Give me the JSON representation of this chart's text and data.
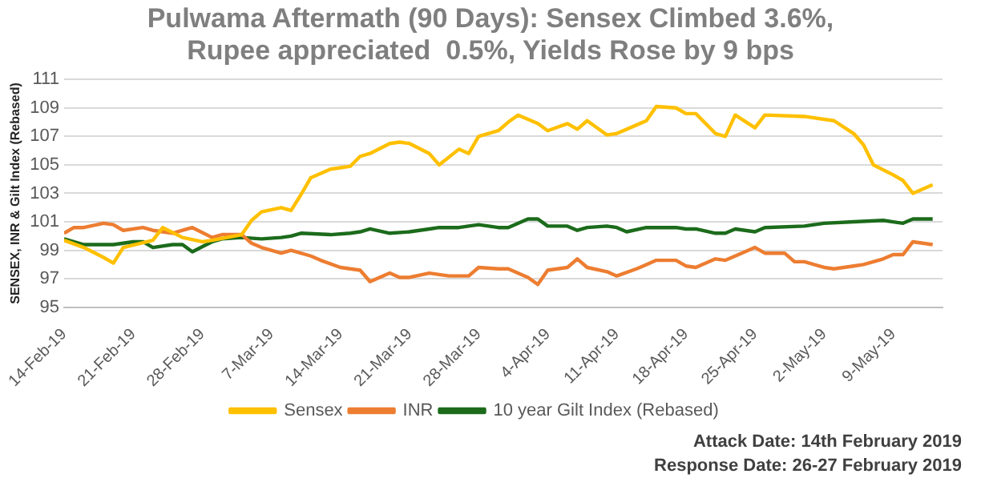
{
  "chart_data": {
    "type": "line",
    "title": "Pulwama Aftermath (90 Days): Sensex Climbed 3.6%, Rupee appreciated  0.5%, Yields Rose by 9 bps",
    "ylabel": "SENSEX, INR & Gilt Index (Rebased)",
    "annotations": [
      "Attack Date: 14th February 2019",
      "Response Date: 26-27 February 2019"
    ],
    "xlim": [
      "2019-02-14",
      "2019-05-14"
    ],
    "xticks": [
      {
        "value": "2019-02-14",
        "label": "14-Feb-19"
      },
      {
        "value": "2019-02-21",
        "label": "21-Feb-19"
      },
      {
        "value": "2019-02-28",
        "label": "28-Feb-19"
      },
      {
        "value": "2019-03-07",
        "label": "7-Mar-19"
      },
      {
        "value": "2019-03-14",
        "label": "14-Mar-19"
      },
      {
        "value": "2019-03-21",
        "label": "21-Mar-19"
      },
      {
        "value": "2019-03-28",
        "label": "28-Mar-19"
      },
      {
        "value": "2019-04-04",
        "label": "4-Apr-19"
      },
      {
        "value": "2019-04-11",
        "label": "11-Apr-19"
      },
      {
        "value": "2019-04-18",
        "label": "18-Apr-19"
      },
      {
        "value": "2019-04-25",
        "label": "25-Apr-19"
      },
      {
        "value": "2019-05-02",
        "label": "2-May-19"
      },
      {
        "value": "2019-05-09",
        "label": "9-May-19"
      }
    ],
    "ylim": [
      95,
      111
    ],
    "yticks": [
      95,
      97,
      99,
      101,
      103,
      105,
      107,
      109,
      111
    ],
    "grid": "y",
    "legend": "bottom",
    "marker": "none",
    "line_style": "solid",
    "series": [
      {
        "name": "Sensex",
        "color": "#ffc000",
        "x": [
          "2019-02-14",
          "2019-02-16",
          "2019-02-18",
          "2019-02-19",
          "2019-02-20",
          "2019-02-23",
          "2019-02-24",
          "2019-02-26",
          "2019-02-28",
          "2019-03-01",
          "2019-03-04",
          "2019-03-05",
          "2019-03-06",
          "2019-03-08",
          "2019-03-09",
          "2019-03-10",
          "2019-03-11",
          "2019-03-13",
          "2019-03-14",
          "2019-03-15",
          "2019-03-16",
          "2019-03-17",
          "2019-03-19",
          "2019-03-20",
          "2019-03-21",
          "2019-03-23",
          "2019-03-24",
          "2019-03-26",
          "2019-03-27",
          "2019-03-28",
          "2019-03-30",
          "2019-03-31",
          "2019-04-01",
          "2019-04-03",
          "2019-04-04",
          "2019-04-06",
          "2019-04-07",
          "2019-04-08",
          "2019-04-10",
          "2019-04-11",
          "2019-04-13",
          "2019-04-14",
          "2019-04-15",
          "2019-04-17",
          "2019-04-18",
          "2019-04-19",
          "2019-04-21",
          "2019-04-22",
          "2019-04-23",
          "2019-04-25",
          "2019-04-26",
          "2019-04-30",
          "2019-05-03",
          "2019-05-05",
          "2019-05-06",
          "2019-05-07",
          "2019-05-09",
          "2019-05-10",
          "2019-05-11",
          "2019-05-13"
        ],
        "values": [
          99.7,
          99.2,
          98.5,
          98.1,
          99.2,
          99.7,
          100.6,
          99.9,
          99.6,
          99.7,
          100.1,
          101.1,
          101.7,
          102.0,
          101.8,
          102.9,
          104.1,
          104.7,
          104.8,
          104.9,
          105.6,
          105.8,
          106.5,
          106.6,
          106.5,
          105.8,
          105.0,
          106.1,
          105.8,
          107.0,
          107.4,
          108.0,
          108.5,
          107.9,
          107.4,
          107.9,
          107.5,
          108.1,
          107.1,
          107.2,
          107.8,
          108.1,
          109.1,
          109.0,
          108.6,
          108.6,
          107.2,
          107.0,
          108.5,
          107.6,
          108.5,
          108.4,
          108.1,
          107.2,
          106.4,
          105.0,
          104.3,
          103.9,
          103.0,
          103.6
        ]
      },
      {
        "name": "INR",
        "color": "#ed7d31",
        "x": [
          "2019-02-14",
          "2019-02-15",
          "2019-02-16",
          "2019-02-18",
          "2019-02-19",
          "2019-02-20",
          "2019-02-22",
          "2019-02-23",
          "2019-02-25",
          "2019-02-26",
          "2019-02-27",
          "2019-03-01",
          "2019-03-02",
          "2019-03-04",
          "2019-03-05",
          "2019-03-06",
          "2019-03-08",
          "2019-03-09",
          "2019-03-11",
          "2019-03-12",
          "2019-03-14",
          "2019-03-16",
          "2019-03-17",
          "2019-03-19",
          "2019-03-20",
          "2019-03-21",
          "2019-03-23",
          "2019-03-25",
          "2019-03-27",
          "2019-03-28",
          "2019-03-30",
          "2019-03-31",
          "2019-04-02",
          "2019-04-03",
          "2019-04-04",
          "2019-04-06",
          "2019-04-07",
          "2019-04-08",
          "2019-04-10",
          "2019-04-11",
          "2019-04-13",
          "2019-04-14",
          "2019-04-15",
          "2019-04-17",
          "2019-04-18",
          "2019-04-19",
          "2019-04-21",
          "2019-04-22",
          "2019-04-23",
          "2019-04-25",
          "2019-04-26",
          "2019-04-28",
          "2019-04-29",
          "2019-04-30",
          "2019-05-02",
          "2019-05-03",
          "2019-05-05",
          "2019-05-06",
          "2019-05-08",
          "2019-05-09",
          "2019-05-10",
          "2019-05-11",
          "2019-05-13"
        ],
        "values": [
          100.2,
          100.6,
          100.6,
          100.9,
          100.8,
          100.4,
          100.6,
          100.4,
          100.2,
          100.4,
          100.6,
          99.9,
          100.1,
          100.1,
          99.5,
          99.2,
          98.8,
          99.0,
          98.6,
          98.3,
          97.8,
          97.6,
          96.8,
          97.4,
          97.1,
          97.1,
          97.4,
          97.2,
          97.2,
          97.8,
          97.7,
          97.7,
          97.1,
          96.6,
          97.6,
          97.8,
          98.4,
          97.8,
          97.5,
          97.2,
          97.7,
          98.0,
          98.3,
          98.3,
          97.9,
          97.8,
          98.4,
          98.3,
          98.6,
          99.2,
          98.8,
          98.8,
          98.2,
          98.2,
          97.8,
          97.7,
          97.9,
          98.0,
          98.4,
          98.7,
          98.7,
          99.6,
          99.4
        ]
      },
      {
        "name": "10 year Gilt Index (Rebased)",
        "color": "#1b6b1b",
        "x": [
          "2019-02-14",
          "2019-02-16",
          "2019-02-18",
          "2019-02-19",
          "2019-02-21",
          "2019-02-22",
          "2019-02-23",
          "2019-02-25",
          "2019-02-26",
          "2019-02-27",
          "2019-03-01",
          "2019-03-02",
          "2019-03-04",
          "2019-03-06",
          "2019-03-08",
          "2019-03-09",
          "2019-03-10",
          "2019-03-13",
          "2019-03-15",
          "2019-03-16",
          "2019-03-17",
          "2019-03-19",
          "2019-03-21",
          "2019-03-23",
          "2019-03-24",
          "2019-03-26",
          "2019-03-27",
          "2019-03-28",
          "2019-03-30",
          "2019-03-31",
          "2019-04-02",
          "2019-04-03",
          "2019-04-04",
          "2019-04-06",
          "2019-04-07",
          "2019-04-08",
          "2019-04-10",
          "2019-04-11",
          "2019-04-12",
          "2019-04-14",
          "2019-04-17",
          "2019-04-18",
          "2019-04-19",
          "2019-04-21",
          "2019-04-22",
          "2019-04-23",
          "2019-04-25",
          "2019-04-26",
          "2019-04-30",
          "2019-05-02",
          "2019-05-05",
          "2019-05-08",
          "2019-05-09",
          "2019-05-10",
          "2019-05-11",
          "2019-05-13"
        ],
        "values": [
          99.8,
          99.4,
          99.4,
          99.4,
          99.6,
          99.6,
          99.2,
          99.4,
          99.4,
          98.9,
          99.6,
          99.8,
          99.9,
          99.8,
          99.9,
          100.0,
          100.2,
          100.1,
          100.2,
          100.3,
          100.5,
          100.2,
          100.3,
          100.5,
          100.6,
          100.6,
          100.7,
          100.8,
          100.6,
          100.6,
          101.2,
          101.2,
          100.7,
          100.7,
          100.4,
          100.6,
          100.7,
          100.6,
          100.3,
          100.6,
          100.6,
          100.5,
          100.5,
          100.2,
          100.2,
          100.5,
          100.3,
          100.6,
          100.7,
          100.9,
          101.0,
          101.1,
          101.0,
          100.9,
          101.2,
          101.2
        ]
      }
    ]
  }
}
